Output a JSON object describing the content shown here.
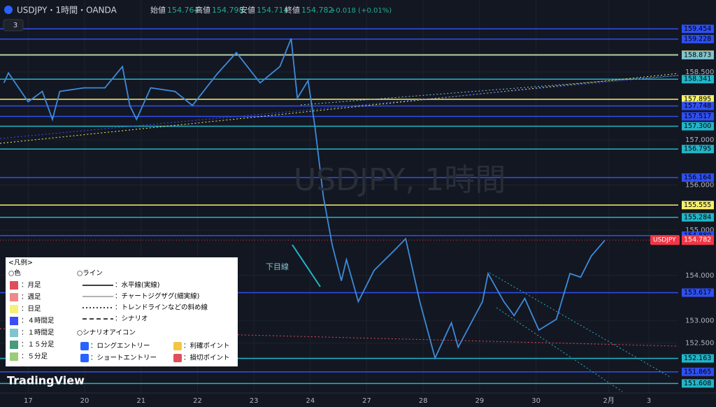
{
  "header": {
    "symbol": "USDJPY・1時間・OANDA",
    "indicator_count": "3",
    "ohlc": [
      {
        "label": "始値",
        "value": "154.764"
      },
      {
        "label": "高値",
        "value": "154.798"
      },
      {
        "label": "安値",
        "value": "154.714"
      },
      {
        "label": "終値",
        "value": "154.782"
      }
    ],
    "change": "+0.018 (+0.01%)"
  },
  "chart_data": {
    "type": "line",
    "watermark": "USDJPY, 1時間",
    "annotation": "下目線",
    "brand": "TradingView",
    "x": [
      -0.43,
      -0.35,
      0,
      0.25,
      0.43,
      0.56,
      0.99,
      1.36,
      1.67,
      1.8,
      1.92,
      2.17,
      2.6,
      2.91,
      3.35,
      3.69,
      4.11,
      4.46,
      4.66,
      4.77,
      4.96,
      5.08,
      5.23,
      5.39,
      5.55,
      5.64,
      5.85,
      6.13,
      6.51,
      6.69,
      6.94,
      7.21,
      7.5,
      7.62,
      8.05,
      8.15,
      8.43,
      8.61,
      8.8,
      9.05,
      9.36,
      9.6,
      9.79,
      9.98,
      10.22
    ],
    "values": [
      158.26,
      158.48,
      157.84,
      158.07,
      157.45,
      158.07,
      158.15,
      158.15,
      158.62,
      157.76,
      157.45,
      158.15,
      158.07,
      157.76,
      158.46,
      158.93,
      158.26,
      158.62,
      159.24,
      157.92,
      158.31,
      157.3,
      155.75,
      154.66,
      153.88,
      154.35,
      153.42,
      154.11,
      154.58,
      154.81,
      153.42,
      152.17,
      152.95,
      152.41,
      153.42,
      154.04,
      153.42,
      153.11,
      153.49,
      152.79,
      153.03,
      154.04,
      153.96,
      154.43,
      154.78
    ],
    "color": "#3d8bd9",
    "xlim": [
      -0.5,
      11.52
    ],
    "ylim": [
      151.397,
      160.093
    ],
    "xticks": [
      {
        "value": 0,
        "label": "17"
      },
      {
        "value": 1,
        "label": "20"
      },
      {
        "value": 2,
        "label": "21"
      },
      {
        "value": 3,
        "label": "22"
      },
      {
        "value": 4,
        "label": "23"
      },
      {
        "value": 5,
        "label": "24"
      },
      {
        "value": 6,
        "label": "27"
      },
      {
        "value": 7,
        "label": "28"
      },
      {
        "value": 8,
        "label": "29"
      },
      {
        "value": 9,
        "label": "30"
      },
      {
        "value": 10.29,
        "label": "2月"
      },
      {
        "value": 11,
        "label": "3"
      }
    ],
    "yticks": [
      {
        "value": 158.5,
        "label": "158.500"
      },
      {
        "value": 157,
        "label": "157.000"
      },
      {
        "value": 156,
        "label": "156.000"
      },
      {
        "value": 155,
        "label": "155.000"
      },
      {
        "value": 154,
        "label": "154.000"
      },
      {
        "value": 153,
        "label": "153.000"
      },
      {
        "value": 152.5,
        "label": "152.500"
      }
    ],
    "levels": [
      {
        "value": 159.454,
        "color": "#2f4ff0"
      },
      {
        "value": 159.228,
        "color": "#2f4ff0"
      },
      {
        "value": {
          "value": 158.88,
          "label": "158.880"
        },
        "color": "#f08a8a"
      },
      {
        "value": {
          "value": 158.88,
          "label": "158.880"
        },
        "color": "#f5f06a"
      },
      {
        "value": 158.873,
        "color": "#7fc5d0"
      },
      {
        "value": 158.341,
        "color": "#22b5c8"
      },
      {
        "value": 157.895,
        "color": "#f5f06a"
      },
      {
        "value": 157.748,
        "color": "#2f4ff0"
      },
      {
        "value": 157.517,
        "color": "#2f4ff0"
      },
      {
        "value": {
          "value": 157.3,
          "label": "157.300"
        },
        "color": "#22b5c8"
      },
      {
        "value": 156.795,
        "color": "#22b5c8"
      },
      {
        "value": 156.164,
        "color": "#2f4ff0"
      },
      {
        "value": 155.555,
        "color": "#f5f06a"
      },
      {
        "value": 155.284,
        "color": "#22b5c8"
      },
      {
        "value": {
          "value": 154.88,
          "label": "154.880"
        },
        "color": "#2f4ff0"
      },
      {
        "value": 153.617,
        "color": "#2f4ff0"
      },
      {
        "value": 152.163,
        "color": "#22b5c8"
      },
      {
        "value": 151.865,
        "color": "#2f4ff0"
      },
      {
        "value": 151.608,
        "color": "#22b5c8"
      }
    ],
    "last_price": {
      "name": "USDJPY",
      "value": 154.782,
      "color": "#f23645"
    }
  },
  "legend": {
    "title": "<凡例>",
    "colors_title": "○色",
    "colors": [
      {
        "label": "：月足",
        "color": "#e04e5a"
      },
      {
        "label": "：週足",
        "color": "#f08a8a"
      },
      {
        "label": "：日足",
        "color": "#f5f07a"
      },
      {
        "label": "：４時間足",
        "color": "#3b4ef5"
      },
      {
        "label": "：１時間足",
        "color": "#7fc5d0"
      },
      {
        "label": "：１５分足",
        "color": "#4a9a80"
      },
      {
        "label": "：５分足",
        "color": "#9ccb7a"
      }
    ],
    "lines_title": "○ライン",
    "lines": [
      "：水平線(実線)",
      "：チャートジグザグ(細実線)",
      "：トレンドラインなどの斜め線",
      "：シナリオ"
    ],
    "icons_title": "○シナリオアイコン",
    "icons": [
      "：ロングエントリー",
      "：ショートエントリー",
      "：利確ポイント",
      "：損切ポイント"
    ]
  }
}
